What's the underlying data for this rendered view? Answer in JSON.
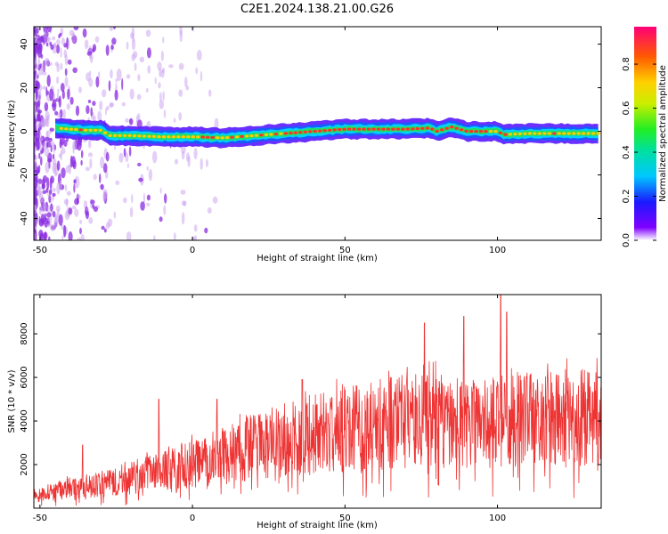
{
  "title": "C2E1.2024.138.21.00.G26",
  "chart_data": [
    {
      "type": "heatmap",
      "xlabel": "Height of straight line (km)",
      "ylabel": "Frequency (Hz)",
      "xlim": [
        -52,
        134
      ],
      "ylim": [
        -50,
        48
      ],
      "xticks": [
        -50,
        0,
        50,
        100
      ],
      "yticks": [
        -40,
        -20,
        0,
        20,
        40
      ],
      "colorbar": {
        "label": "Normalized spectral amplitude",
        "range": [
          0,
          0.97
        ],
        "ticks": [
          "0.0",
          "0.2",
          "0.4",
          "0.6",
          "0.8"
        ],
        "colormap": "rainbow"
      },
      "ridge": {
        "x": [
          -45,
          -40,
          -35,
          -30,
          -27,
          -20,
          -10,
          0,
          10,
          20,
          30,
          40,
          50,
          60,
          70,
          78,
          80,
          85,
          90,
          95,
          100,
          102,
          110,
          120,
          133
        ],
        "y": [
          1.5,
          1,
          0.5,
          0.5,
          -2,
          -2,
          -2.5,
          -2.5,
          -3,
          -2,
          -1,
          0,
          1,
          1,
          1,
          1.5,
          0,
          2,
          0,
          0,
          0,
          -1.5,
          -1,
          -1,
          -1
        ]
      }
    },
    {
      "type": "line",
      "xlabel": "Height of straight line (km)",
      "ylabel": "SNR (10 * v/v)",
      "xlim": [
        -52,
        134
      ],
      "ylim": [
        0,
        9800
      ],
      "xticks": [
        -50,
        0,
        50,
        100
      ],
      "yticks": [
        2000,
        4000,
        6000,
        8000
      ],
      "color": "#ee3333",
      "envelope": {
        "x": [
          -52,
          -40,
          -30,
          -20,
          -10,
          0,
          10,
          20,
          30,
          40,
          50,
          60,
          70,
          80,
          90,
          100,
          110,
          120,
          134
        ],
        "y": [
          600,
          900,
          1100,
          1400,
          1700,
          2000,
          2400,
          2800,
          3100,
          3400,
          3600,
          3800,
          4000,
          4000,
          3900,
          3900,
          4100,
          4100,
          4200
        ]
      },
      "spikes": [
        {
          "x": -36,
          "y": 2900
        },
        {
          "x": -11,
          "y": 5000
        },
        {
          "x": 8,
          "y": 5000
        },
        {
          "x": 36,
          "y": 5900
        },
        {
          "x": 76,
          "y": 8500
        },
        {
          "x": 89,
          "y": 8800
        },
        {
          "x": 101,
          "y": 9800
        },
        {
          "x": 103,
          "y": 9000
        },
        {
          "x": 130,
          "y": 6200
        }
      ]
    }
  ]
}
